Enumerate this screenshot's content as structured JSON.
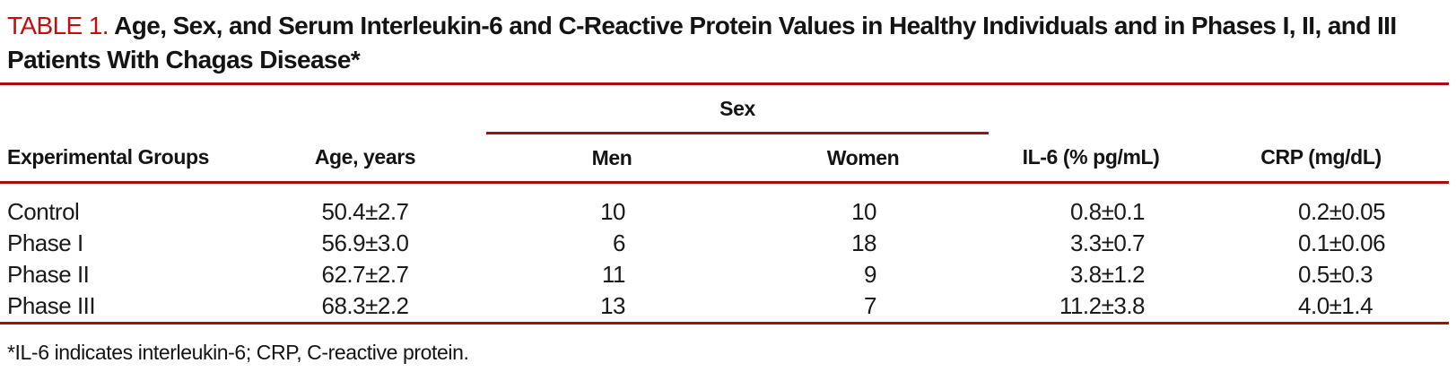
{
  "title": {
    "label": "TABLE 1.",
    "text": "Age, Sex, and Serum Interleukin-6 and C-Reactive Protein Values in Healthy Individuals and in Phases I, II, and III Patients With Chagas Disease*"
  },
  "table": {
    "sex_group_label": "Sex",
    "columns": {
      "group": "Experimental Groups",
      "age": "Age, years",
      "men": "Men",
      "women": "Women",
      "il6": "IL-6 (% pg/mL)",
      "crp": "CRP (mg/dL)"
    },
    "rows": [
      {
        "group": "Control",
        "age": "50.4±2.7",
        "men": "10",
        "women": "10",
        "il6": "0.8±0.1",
        "crp": "0.2±0.05"
      },
      {
        "group": "Phase I",
        "age": "56.9±3.0",
        "men": "6",
        "women": "18",
        "il6": "3.3±0.7",
        "crp": "0.1±0.06"
      },
      {
        "group": "Phase II",
        "age": "62.7±2.7",
        "men": "11",
        "women": "9",
        "il6": "3.8±1.2",
        "crp": "0.5±0.3"
      },
      {
        "group": "Phase III",
        "age": "68.3±2.2",
        "men": "13",
        "women": "7",
        "il6": "11.2±3.8",
        "crp": "4.0±1.4"
      }
    ]
  },
  "footnote": "*IL-6 indicates interleukin-6; CRP, C-reactive protein.",
  "colors": {
    "title_red": "#c1100f",
    "rule_red": "#a50d12"
  }
}
